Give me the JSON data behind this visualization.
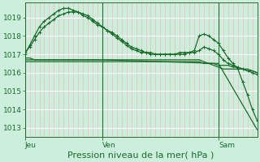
{
  "background_color": "#cceedd",
  "plot_bg_color": "#cceedd",
  "grid_h_color": "#ffffff",
  "grid_v_color": "#ffaaaa",
  "line_color": "#1a6b2a",
  "border_color": "#336633",
  "xlabel": "Pression niveau de la mer( hPa )",
  "xlabel_fontsize": 8,
  "ylim": [
    1012.5,
    1019.8
  ],
  "xlim": [
    0,
    48
  ],
  "yticks": [
    1013,
    1014,
    1015,
    1016,
    1017,
    1018,
    1019
  ],
  "ytick_fontsize": 6.5,
  "xtick_fontsize": 6.5,
  "day_positions": [
    0,
    16,
    40
  ],
  "day_labels": [
    "Jeu",
    "Ven",
    "Sam"
  ],
  "n_points": 49,
  "series": [
    {
      "x": [
        0,
        1,
        2,
        3,
        4,
        5,
        6,
        7,
        8,
        9,
        10,
        11,
        12,
        13,
        14,
        15,
        16,
        17,
        18,
        19,
        20,
        21,
        22,
        23,
        24,
        25,
        26,
        27,
        28,
        29,
        30,
        31,
        32,
        33,
        34,
        35,
        36,
        37,
        38,
        39,
        40,
        41,
        42,
        43,
        44,
        45,
        46,
        47,
        48
      ],
      "y": [
        1017.0,
        1017.5,
        1018.0,
        1018.5,
        1018.8,
        1019.0,
        1019.2,
        1019.4,
        1019.5,
        1019.5,
        1019.4,
        1019.3,
        1019.1,
        1019.0,
        1018.8,
        1018.6,
        1018.5,
        1018.3,
        1018.2,
        1018.0,
        1017.8,
        1017.6,
        1017.4,
        1017.3,
        1017.2,
        1017.1,
        1017.1,
        1017.0,
        1017.0,
        1017.0,
        1017.0,
        1017.0,
        1017.1,
        1017.1,
        1017.1,
        1017.2,
        1018.0,
        1018.1,
        1018.0,
        1017.8,
        1017.6,
        1017.2,
        1016.8,
        1016.5,
        1016.2,
        1015.5,
        1014.8,
        1014.0,
        1013.4
      ],
      "marker": "+",
      "lw": 0.9
    },
    {
      "x": [
        0,
        1,
        2,
        3,
        4,
        5,
        6,
        7,
        8,
        9,
        10,
        11,
        12,
        13,
        14,
        15,
        16,
        17,
        18,
        19,
        20,
        21,
        22,
        23,
        24,
        25,
        26,
        27,
        28,
        29,
        30,
        31,
        32,
        33,
        34,
        35,
        36,
        37,
        38,
        39,
        40,
        41,
        42,
        43,
        44,
        45,
        46,
        47,
        48
      ],
      "y": [
        1017.1,
        1017.4,
        1017.8,
        1018.2,
        1018.5,
        1018.7,
        1018.9,
        1019.1,
        1019.2,
        1019.3,
        1019.3,
        1019.3,
        1019.2,
        1019.1,
        1018.9,
        1018.7,
        1018.5,
        1018.3,
        1018.1,
        1017.9,
        1017.7,
        1017.5,
        1017.3,
        1017.2,
        1017.1,
        1017.1,
        1017.0,
        1017.0,
        1017.0,
        1017.0,
        1017.0,
        1017.0,
        1017.0,
        1017.0,
        1017.1,
        1017.1,
        1017.2,
        1017.4,
        1017.3,
        1017.2,
        1017.0,
        1016.7,
        1016.5,
        1016.4,
        1016.3,
        1016.2,
        1016.1,
        1016.0,
        1015.9
      ],
      "marker": "+",
      "lw": 0.9
    },
    {
      "x": [
        0,
        1,
        2,
        3,
        4,
        5,
        6,
        7,
        8,
        9,
        10,
        11,
        12,
        13,
        14,
        15,
        16,
        17,
        18,
        19,
        20,
        21,
        22,
        23,
        24,
        25,
        26,
        27,
        28,
        29,
        30,
        31,
        32,
        33,
        34,
        35,
        36,
        37,
        38,
        39,
        40,
        41,
        42,
        43,
        44,
        45,
        46,
        47,
        48
      ],
      "y": [
        1016.8,
        1016.8,
        1016.7,
        1016.7,
        1016.7,
        1016.7,
        1016.7,
        1016.7,
        1016.7,
        1016.7,
        1016.7,
        1016.7,
        1016.7,
        1016.7,
        1016.7,
        1016.7,
        1016.7,
        1016.7,
        1016.7,
        1016.7,
        1016.7,
        1016.7,
        1016.7,
        1016.7,
        1016.7,
        1016.7,
        1016.7,
        1016.7,
        1016.7,
        1016.7,
        1016.7,
        1016.7,
        1016.7,
        1016.7,
        1016.7,
        1016.7,
        1016.7,
        1016.6,
        1016.5,
        1016.4,
        1016.3,
        1016.2,
        1016.2,
        1016.2,
        1016.2,
        1016.2,
        1016.1,
        1016.1,
        1016.0
      ],
      "marker": null,
      "lw": 0.9
    },
    {
      "x": [
        0,
        1,
        2,
        3,
        4,
        5,
        6,
        7,
        8,
        9,
        10,
        11,
        12,
        13,
        14,
        15,
        16,
        17,
        18,
        19,
        20,
        21,
        22,
        23,
        24,
        25,
        26,
        27,
        28,
        29,
        30,
        31,
        32,
        33,
        34,
        35,
        36,
        37,
        38,
        39,
        40,
        41,
        42,
        43,
        44,
        45,
        46,
        47,
        48
      ],
      "y": [
        1016.6,
        1016.6,
        1016.6,
        1016.6,
        1016.6,
        1016.6,
        1016.6,
        1016.6,
        1016.6,
        1016.6,
        1016.6,
        1016.6,
        1016.6,
        1016.6,
        1016.6,
        1016.6,
        1016.6,
        1016.6,
        1016.6,
        1016.6,
        1016.6,
        1016.6,
        1016.6,
        1016.6,
        1016.6,
        1016.6,
        1016.6,
        1016.6,
        1016.6,
        1016.6,
        1016.6,
        1016.6,
        1016.6,
        1016.6,
        1016.6,
        1016.6,
        1016.6,
        1016.5,
        1016.5,
        1016.5,
        1016.4,
        1016.4,
        1016.4,
        1016.3,
        1016.3,
        1016.2,
        1016.2,
        1016.1,
        1016.0
      ],
      "marker": null,
      "lw": 0.9
    },
    {
      "x": [
        0,
        16,
        40,
        48
      ],
      "y": [
        1016.7,
        1016.7,
        1016.5,
        1012.9
      ],
      "marker": null,
      "lw": 0.9
    }
  ]
}
